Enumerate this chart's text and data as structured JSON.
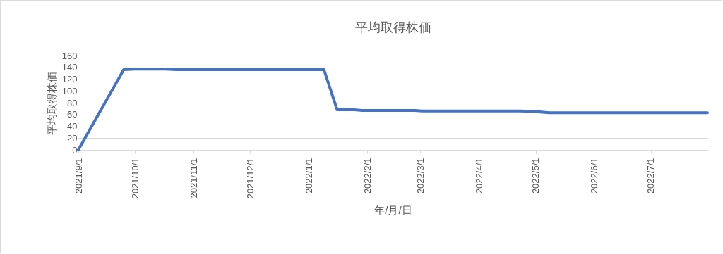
{
  "chart_data": {
    "type": "line",
    "title": "平均取得株価",
    "xlabel": "年/月/日",
    "ylabel": "平均取得株価",
    "x": [
      "2021-09-01",
      "2021-09-25",
      "2021-10-01",
      "2021-10-17",
      "2021-10-23",
      "2022-01-09",
      "2022-01-16",
      "2022-01-25",
      "2022-01-29",
      "2022-02-26",
      "2022-03-02",
      "2022-04-23",
      "2022-05-01",
      "2022-05-08",
      "2022-07-31"
    ],
    "series": [
      {
        "color": "#4472c4",
        "values": [
          0,
          136,
          137,
          137,
          136,
          136,
          68,
          68,
          67,
          67,
          66,
          66,
          65,
          63,
          63
        ]
      }
    ],
    "xlim": [
      "2021-09-01",
      "2022-07-31"
    ],
    "xticks": [
      {
        "value": "2021-09-01",
        "label": "2021/9/1"
      },
      {
        "value": "2021-10-01",
        "label": "2021/10/1"
      },
      {
        "value": "2021-11-01",
        "label": "2021/11/1"
      },
      {
        "value": "2021-12-01",
        "label": "2021/12/1"
      },
      {
        "value": "2022-01-01",
        "label": "2022/1/1"
      },
      {
        "value": "2022-02-01",
        "label": "2022/2/1"
      },
      {
        "value": "2022-03-01",
        "label": "2022/3/1"
      },
      {
        "value": "2022-04-01",
        "label": "2022/4/1"
      },
      {
        "value": "2022-05-01",
        "label": "2022/5/1"
      },
      {
        "value": "2022-06-01",
        "label": "2022/6/1"
      },
      {
        "value": "2022-07-01",
        "label": "2022/7/1"
      }
    ],
    "ylim": [
      0,
      160
    ],
    "yticks": [
      0,
      20,
      40,
      60,
      80,
      100,
      120,
      140,
      160
    ],
    "grid": "y",
    "marker": "none",
    "line_style": "solid"
  }
}
